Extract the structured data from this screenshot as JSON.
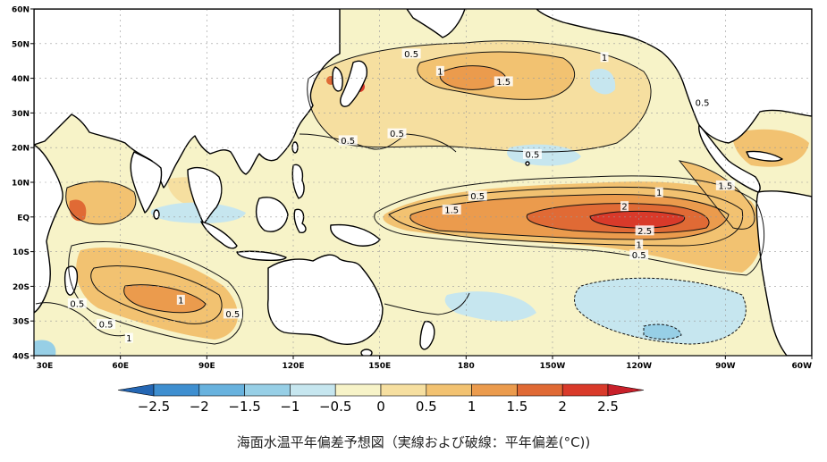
{
  "map": {
    "lat_labels": [
      "60N",
      "50N",
      "40N",
      "30N",
      "20N",
      "10N",
      "EQ",
      "10S",
      "20S",
      "30S",
      "40S"
    ],
    "lon_labels": [
      "30E",
      "60E",
      "90E",
      "120E",
      "150E",
      "180",
      "150W",
      "120W",
      "90W",
      "60W"
    ],
    "contour_labels": [
      {
        "text": "0.5",
        "lon": 161,
        "lat": 47
      },
      {
        "text": "1",
        "lon": 171,
        "lat": 42
      },
      {
        "text": "1.5",
        "lon": 193,
        "lat": 39
      },
      {
        "text": "1",
        "lon": 228,
        "lat": 46
      },
      {
        "text": "0.5",
        "lon": 262,
        "lat": 33
      },
      {
        "text": "0.5",
        "lon": 203,
        "lat": 18
      },
      {
        "text": "0.5",
        "lon": 139,
        "lat": 22
      },
      {
        "text": "0.5",
        "lon": 156,
        "lat": 24
      },
      {
        "text": "0.5",
        "lon": 184,
        "lat": 6
      },
      {
        "text": "1.5",
        "lon": 175,
        "lat": 2
      },
      {
        "text": "1",
        "lon": 247,
        "lat": 7
      },
      {
        "text": "2",
        "lon": 235,
        "lat": 3
      },
      {
        "text": "2.5",
        "lon": 242,
        "lat": -4
      },
      {
        "text": "1",
        "lon": 240,
        "lat": -8
      },
      {
        "text": "0.5",
        "lon": 240,
        "lat": -11
      },
      {
        "text": "1.5",
        "lon": 270,
        "lat": 9
      },
      {
        "text": "1",
        "lon": 81,
        "lat": -24
      },
      {
        "text": "0.5",
        "lon": 99,
        "lat": -28
      },
      {
        "text": "0.5",
        "lon": 55,
        "lat": -31
      },
      {
        "text": "1",
        "lon": 63,
        "lat": -35
      },
      {
        "text": "0.5",
        "lon": 45,
        "lat": -25
      }
    ]
  },
  "colorbar": {
    "levels": [
      "−2.5",
      "−2",
      "−1.5",
      "−1",
      "−0.5",
      "0",
      "0.5",
      "1",
      "1.5",
      "2",
      "2.5"
    ],
    "colors": [
      "#2466b3",
      "#3f8fd0",
      "#68b2de",
      "#97cfe6",
      "#c6e6ef",
      "#f7f3c8",
      "#f6dfa0",
      "#f2c271",
      "#eb9b4d",
      "#e06a35",
      "#d93a2a",
      "#c8202a"
    ]
  },
  "caption": "海面水温平年偏差予想図（実線および破線：平年偏差(°C))"
}
